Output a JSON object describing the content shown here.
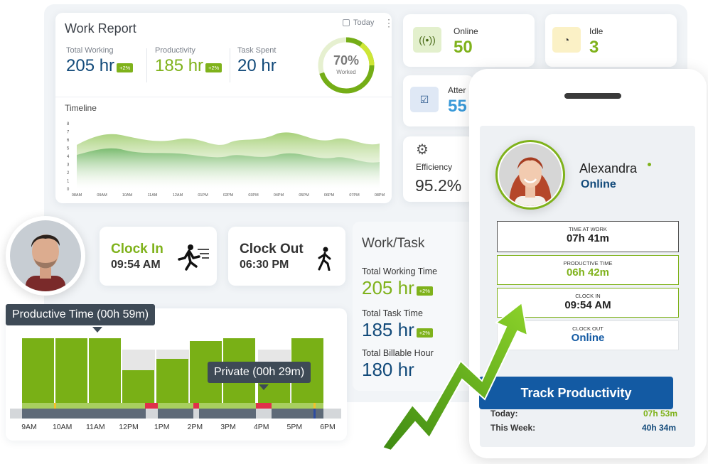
{
  "work_report": {
    "title": "Work Report",
    "period": "Today",
    "metrics": [
      {
        "label": "Total Working",
        "value": "205 hr",
        "badge": "+2%"
      },
      {
        "label": "Productivity",
        "value": "185 hr",
        "badge": "+2%"
      },
      {
        "label": "Task Spent",
        "value": "20 hr"
      }
    ],
    "ring": {
      "percent_label": "70%",
      "sub_label": "Worked",
      "value": 0.7
    },
    "timeline": {
      "label": "Timeline",
      "y_ticks": [
        "8",
        "7",
        "6",
        "5",
        "4",
        "3",
        "2",
        "1",
        "0"
      ],
      "x_ticks": [
        "08AM",
        "09AM",
        "10AM",
        "11AM",
        "12AM",
        "01PM",
        "02PM",
        "03PM",
        "04PM",
        "05PM",
        "06PM",
        "07PM",
        "08PM"
      ]
    }
  },
  "stats": {
    "online": {
      "label": "Online",
      "value": "50"
    },
    "idle": {
      "label": "Idle",
      "value": "3"
    },
    "attendance": {
      "label": "Atter",
      "value": "55"
    },
    "efficiency": {
      "label": "Efficiency",
      "value": "95.2%"
    }
  },
  "clock": {
    "in": {
      "title": "Clock In",
      "time": "09:54 AM"
    },
    "out": {
      "title": "Clock Out",
      "time": "06:30 PM"
    }
  },
  "work_task": {
    "title": "Work/Task",
    "items": [
      {
        "label": "Total Working Time",
        "value": "205 hr",
        "badge": "+2%"
      },
      {
        "label": "Total Task Time",
        "value": "185 hr",
        "badge": "+2%"
      },
      {
        "label": "Total Billable Hour",
        "value": "180 hr"
      }
    ]
  },
  "productivity_chart": {
    "tooltip_productive": "Productive Time (00h 59m)",
    "tooltip_private": "Private (00h 29m)",
    "hours": [
      "9AM",
      "10AM",
      "11AM",
      "12PM",
      "1PM",
      "2PM",
      "3PM",
      "4PM",
      "5PM",
      "6PM"
    ]
  },
  "phone": {
    "user_name": "Alexandra",
    "user_status": "Online",
    "time_at_work_label": "TIME AT WORK",
    "time_at_work": "07h 41m",
    "productive_time_label": "PRODUCTIVE TIME",
    "productive_time": "06h 42m",
    "clock_in_label": "CLOCK IN",
    "clock_in": "09:54 AM",
    "clock_out_label": "CLOCK OUT",
    "clock_out": "Online",
    "button": "Track Productivity",
    "today_label": "Today:",
    "today_value": "07h 53m",
    "week_label": "This Week:",
    "week_value": "40h 34m"
  },
  "colors": {
    "green": "#7fb21b",
    "blue": "#124a7a",
    "button_blue": "#135aa3",
    "red": "#e0304a"
  }
}
